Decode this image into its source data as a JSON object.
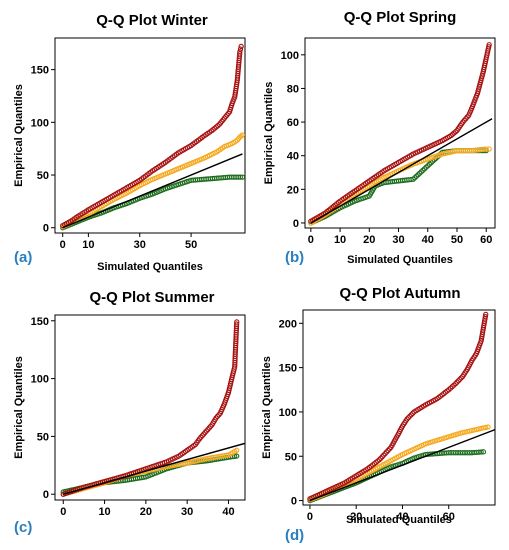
{
  "colors": {
    "red": "#a50f0f",
    "orange": "#f5a71a",
    "green": "#1b6b1b",
    "fit": "#000000"
  },
  "chart_data": [
    {
      "panel": "(a)",
      "type": "scatter",
      "title": "Q-Q Plot Winter",
      "xlabel": "Simulated Quantiles",
      "ylabel": "Empirical Quantiles",
      "xlim": [
        -3,
        71
      ],
      "ylim": [
        -5,
        180
      ],
      "xticks": [
        0,
        10,
        30,
        50
      ],
      "yticks": [
        0,
        50,
        100,
        150
      ],
      "fit_line": [
        [
          0,
          0
        ],
        [
          70,
          70
        ]
      ],
      "series": [
        {
          "color": "red",
          "points": [
            [
              0,
              2
            ],
            [
              3,
              6
            ],
            [
              6,
              11
            ],
            [
              10,
              17
            ],
            [
              15,
              24
            ],
            [
              20,
              31
            ],
            [
              25,
              38
            ],
            [
              30,
              45
            ],
            [
              35,
              54
            ],
            [
              40,
              62
            ],
            [
              45,
              71
            ],
            [
              50,
              78
            ],
            [
              55,
              87
            ],
            [
              58,
              92
            ],
            [
              61,
              98
            ],
            [
              63,
              104
            ],
            [
              65,
              110
            ],
            [
              66,
              118
            ],
            [
              67,
              124
            ],
            [
              68,
              140
            ],
            [
              69,
              167
            ],
            [
              69.5,
              172
            ]
          ]
        },
        {
          "color": "orange",
          "points": [
            [
              0,
              1
            ],
            [
              5,
              7
            ],
            [
              10,
              13
            ],
            [
              15,
              20
            ],
            [
              20,
              27
            ],
            [
              25,
              33
            ],
            [
              30,
              40
            ],
            [
              35,
              46
            ],
            [
              40,
              51
            ],
            [
              45,
              56
            ],
            [
              50,
              61
            ],
            [
              55,
              66
            ],
            [
              60,
              72
            ],
            [
              63,
              77
            ],
            [
              66,
              80
            ],
            [
              68,
              83
            ],
            [
              69,
              86
            ],
            [
              70,
              88
            ]
          ]
        },
        {
          "color": "green",
          "points": [
            [
              0,
              0
            ],
            [
              5,
              5
            ],
            [
              10,
              10
            ],
            [
              15,
              14
            ],
            [
              20,
              19
            ],
            [
              25,
              23
            ],
            [
              30,
              28
            ],
            [
              35,
              32
            ],
            [
              40,
              37
            ],
            [
              45,
              41
            ],
            [
              50,
              45
            ],
            [
              55,
              46
            ],
            [
              60,
              47
            ],
            [
              65,
              48
            ],
            [
              70,
              48
            ]
          ]
        }
      ]
    },
    {
      "panel": "(b)",
      "type": "scatter",
      "title": "Q-Q Plot Spring",
      "xlabel": "Simulated Quantiles",
      "ylabel": "Empirical Quantiles",
      "xlim": [
        -2,
        63
      ],
      "ylim": [
        -3,
        110
      ],
      "xticks": [
        0,
        10,
        20,
        30,
        40,
        50,
        60
      ],
      "yticks": [
        0,
        20,
        40,
        60,
        80,
        100
      ],
      "fit_line": [
        [
          0,
          0
        ],
        [
          62,
          62
        ]
      ],
      "series": [
        {
          "color": "red",
          "points": [
            [
              0,
              1
            ],
            [
              5,
              6
            ],
            [
              10,
              13
            ],
            [
              15,
              19
            ],
            [
              20,
              25
            ],
            [
              25,
              31
            ],
            [
              30,
              36
            ],
            [
              35,
              41
            ],
            [
              40,
              45
            ],
            [
              45,
              49
            ],
            [
              48,
              52
            ],
            [
              50,
              55
            ],
            [
              52,
              60
            ],
            [
              54,
              64
            ],
            [
              55,
              68
            ],
            [
              57,
              77
            ],
            [
              59,
              90
            ],
            [
              61,
              106
            ]
          ]
        },
        {
          "color": "orange",
          "points": [
            [
              0,
              0
            ],
            [
              5,
              5
            ],
            [
              10,
              11
            ],
            [
              15,
              17
            ],
            [
              20,
              22
            ],
            [
              25,
              27
            ],
            [
              30,
              31
            ],
            [
              35,
              35
            ],
            [
              40,
              38
            ],
            [
              45,
              41
            ],
            [
              50,
              43
            ],
            [
              55,
              43
            ],
            [
              60,
              44
            ],
            [
              61,
              44
            ]
          ]
        },
        {
          "color": "green",
          "points": [
            [
              0,
              0
            ],
            [
              5,
              4
            ],
            [
              10,
              9
            ],
            [
              15,
              13
            ],
            [
              20,
              16
            ],
            [
              22,
              22
            ],
            [
              25,
              24
            ],
            [
              30,
              25
            ],
            [
              35,
              26
            ],
            [
              40,
              34
            ],
            [
              45,
              42
            ],
            [
              50,
              43
            ],
            [
              55,
              43
            ],
            [
              60,
              43
            ]
          ]
        }
      ]
    },
    {
      "panel": "(c)",
      "type": "scatter",
      "title": "Q-Q Plot Summer",
      "xlabel": "",
      "ylabel": "Empirical Quantiles",
      "xlim": [
        -2,
        44
      ],
      "ylim": [
        -5,
        155
      ],
      "xticks": [
        0,
        10,
        20,
        30,
        40
      ],
      "yticks": [
        0,
        50,
        100,
        150
      ],
      "fit_line": [
        [
          0,
          0
        ],
        [
          44,
          44
        ]
      ],
      "series": [
        {
          "color": "red",
          "points": [
            [
              0,
              0
            ],
            [
              5,
              6
            ],
            [
              10,
              11
            ],
            [
              15,
              16
            ],
            [
              20,
              22
            ],
            [
              25,
              28
            ],
            [
              28,
              33
            ],
            [
              30,
              38
            ],
            [
              32,
              43
            ],
            [
              33,
              48
            ],
            [
              34,
              52
            ],
            [
              35,
              56
            ],
            [
              36,
              60
            ],
            [
              37,
              66
            ],
            [
              38,
              70
            ],
            [
              39,
              78
            ],
            [
              40,
              88
            ],
            [
              41,
              103
            ],
            [
              41.5,
              110
            ],
            [
              42,
              149
            ]
          ]
        },
        {
          "color": "orange",
          "points": [
            [
              0,
              0
            ],
            [
              5,
              5
            ],
            [
              10,
              10
            ],
            [
              15,
              16
            ],
            [
              20,
              20
            ],
            [
              25,
              24
            ],
            [
              30,
              27
            ],
            [
              35,
              31
            ],
            [
              40,
              34
            ],
            [
              42,
              38
            ]
          ]
        },
        {
          "color": "green",
          "points": [
            [
              0,
              2
            ],
            [
              5,
              6
            ],
            [
              10,
              10
            ],
            [
              15,
              12
            ],
            [
              20,
              15
            ],
            [
              25,
              22
            ],
            [
              30,
              27
            ],
            [
              35,
              29
            ],
            [
              40,
              32
            ],
            [
              42,
              33
            ]
          ]
        }
      ]
    },
    {
      "panel": "(d)",
      "type": "scatter",
      "title": "Q-Q Plot Autumn",
      "xlabel": "Simulated Quantiles",
      "ylabel": "Empirical Quantiles",
      "xlim": [
        -3,
        80
      ],
      "ylim": [
        -5,
        215
      ],
      "xticks": [
        0,
        20,
        40,
        60
      ],
      "yticks": [
        0,
        50,
        100,
        150,
        200
      ],
      "fit_line": [
        [
          0,
          0
        ],
        [
          80,
          80
        ]
      ],
      "series": [
        {
          "color": "red",
          "points": [
            [
              0,
              2
            ],
            [
              5,
              8
            ],
            [
              10,
              14
            ],
            [
              15,
              20
            ],
            [
              20,
              28
            ],
            [
              25,
              36
            ],
            [
              30,
              46
            ],
            [
              35,
              60
            ],
            [
              38,
              74
            ],
            [
              40,
              84
            ],
            [
              42,
              92
            ],
            [
              45,
              100
            ],
            [
              50,
              108
            ],
            [
              55,
              115
            ],
            [
              60,
              125
            ],
            [
              63,
              132
            ],
            [
              66,
              140
            ],
            [
              68,
              148
            ],
            [
              70,
              158
            ],
            [
              72,
              166
            ],
            [
              74,
              180
            ],
            [
              76,
              210
            ]
          ]
        },
        {
          "color": "orange",
          "points": [
            [
              0,
              1
            ],
            [
              5,
              6
            ],
            [
              10,
              12
            ],
            [
              15,
              18
            ],
            [
              20,
              24
            ],
            [
              25,
              31
            ],
            [
              30,
              38
            ],
            [
              35,
              45
            ],
            [
              40,
              52
            ],
            [
              45,
              58
            ],
            [
              50,
              64
            ],
            [
              55,
              68
            ],
            [
              60,
              72
            ],
            [
              65,
              76
            ],
            [
              70,
              79
            ],
            [
              75,
              82
            ],
            [
              77,
              83
            ]
          ]
        },
        {
          "color": "green",
          "points": [
            [
              0,
              0
            ],
            [
              5,
              5
            ],
            [
              10,
              10
            ],
            [
              15,
              15
            ],
            [
              20,
              20
            ],
            [
              25,
              26
            ],
            [
              30,
              32
            ],
            [
              35,
              38
            ],
            [
              40,
              42
            ],
            [
              45,
              48
            ],
            [
              50,
              52
            ],
            [
              55,
              53
            ],
            [
              60,
              54
            ],
            [
              65,
              54
            ],
            [
              70,
              54
            ],
            [
              75,
              55
            ]
          ]
        }
      ]
    }
  ]
}
